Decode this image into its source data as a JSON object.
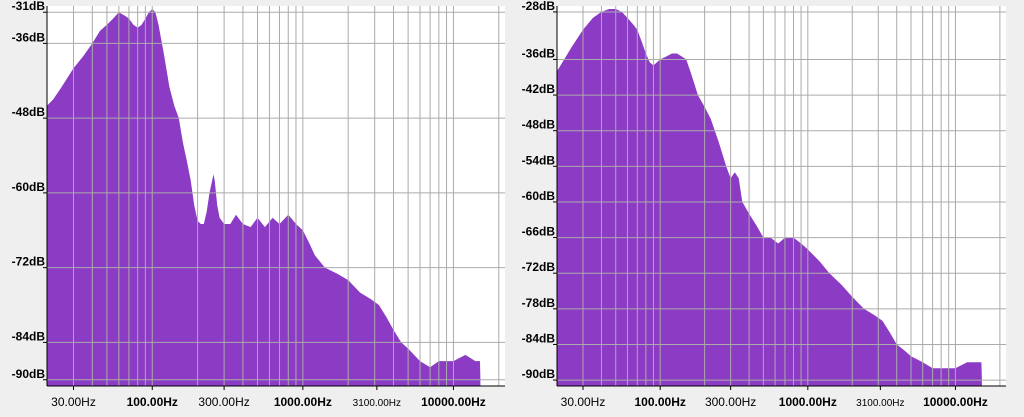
{
  "colors": {
    "fill": "#8b3bc4",
    "grid": "#ababab",
    "plot_bg": "#ffffff",
    "panel_bg": "#efefef",
    "text": "#000000"
  },
  "chart_data": [
    {
      "type": "area",
      "xscale": "log",
      "xlim": [
        20,
        22000
      ],
      "ylim": [
        -91,
        -30
      ],
      "yticks": [
        "-31dB",
        "-36dB",
        "-48dB",
        "-60dB",
        "-72dB",
        "-84dB",
        "-90dB"
      ],
      "ytick_values": [
        -31,
        -36,
        -48,
        -60,
        -72,
        -84,
        -90
      ],
      "xticks": [
        "30.00Hz",
        "100.00Hz",
        "300.00Hz",
        "1000.00Hz",
        "3100.00Hz",
        "10000.00Hz"
      ],
      "xtick_values": [
        30,
        100,
        300,
        1000,
        3100,
        10000
      ],
      "xticks_bold": [
        false,
        true,
        false,
        true,
        false,
        true
      ],
      "grid": true,
      "points": [
        [
          20,
          -46
        ],
        [
          22,
          -45
        ],
        [
          25,
          -43
        ],
        [
          30,
          -40
        ],
        [
          35,
          -38
        ],
        [
          40,
          -36
        ],
        [
          45,
          -34
        ],
        [
          50,
          -33
        ],
        [
          55,
          -32
        ],
        [
          60,
          -31
        ],
        [
          65,
          -31.5
        ],
        [
          70,
          -32
        ],
        [
          75,
          -33
        ],
        [
          80,
          -33.5
        ],
        [
          85,
          -33
        ],
        [
          90,
          -32
        ],
        [
          95,
          -31
        ],
        [
          100,
          -30.5
        ],
        [
          105,
          -31
        ],
        [
          110,
          -33
        ],
        [
          120,
          -38
        ],
        [
          130,
          -43
        ],
        [
          140,
          -46
        ],
        [
          150,
          -48
        ],
        [
          160,
          -52
        ],
        [
          170,
          -55
        ],
        [
          180,
          -58
        ],
        [
          190,
          -62
        ],
        [
          200,
          -64.5
        ],
        [
          210,
          -65
        ],
        [
          220,
          -65
        ],
        [
          230,
          -63
        ],
        [
          240,
          -60
        ],
        [
          250,
          -58
        ],
        [
          255,
          -57
        ],
        [
          260,
          -58
        ],
        [
          270,
          -62
        ],
        [
          280,
          -64
        ],
        [
          300,
          -65
        ],
        [
          330,
          -65
        ],
        [
          360,
          -63.5
        ],
        [
          400,
          -65
        ],
        [
          450,
          -65.5
        ],
        [
          500,
          -64
        ],
        [
          560,
          -65.5
        ],
        [
          630,
          -64
        ],
        [
          700,
          -65
        ],
        [
          800,
          -63.5
        ],
        [
          900,
          -65
        ],
        [
          1000,
          -66
        ],
        [
          1100,
          -68
        ],
        [
          1200,
          -70
        ],
        [
          1400,
          -72
        ],
        [
          1700,
          -73
        ],
        [
          2000,
          -74
        ],
        [
          2400,
          -76
        ],
        [
          2800,
          -77
        ],
        [
          3200,
          -78
        ],
        [
          3600,
          -80
        ],
        [
          4000,
          -82
        ],
        [
          4500,
          -84
        ],
        [
          5000,
          -85
        ],
        [
          6000,
          -87
        ],
        [
          7000,
          -88
        ],
        [
          8000,
          -87
        ],
        [
          10000,
          -87
        ],
        [
          12000,
          -86
        ],
        [
          14000,
          -87
        ],
        [
          15000,
          -87
        ],
        [
          15100,
          -90
        ]
      ]
    },
    {
      "type": "area",
      "xscale": "log",
      "xlim": [
        20,
        22000
      ],
      "ylim": [
        -91,
        -27
      ],
      "yticks": [
        "-28dB",
        "-36dB",
        "-42dB",
        "-48dB",
        "-54dB",
        "-60dB",
        "-66dB",
        "-72dB",
        "-78dB",
        "-84dB",
        "-90dB"
      ],
      "ytick_values": [
        -28,
        -36,
        -42,
        -48,
        -54,
        -60,
        -66,
        -72,
        -78,
        -84,
        -90
      ],
      "xticks": [
        "30.00Hz",
        "100.00Hz",
        "300.00Hz",
        "1000.00Hz",
        "3100.00Hz",
        "10000.00Hz"
      ],
      "xtick_values": [
        30,
        100,
        300,
        1000,
        3100,
        10000
      ],
      "xticks_bold": [
        false,
        true,
        false,
        true,
        false,
        true
      ],
      "grid": true,
      "points": [
        [
          20,
          -38
        ],
        [
          25,
          -34
        ],
        [
          30,
          -31
        ],
        [
          35,
          -29
        ],
        [
          40,
          -28
        ],
        [
          45,
          -27.5
        ],
        [
          50,
          -27.5
        ],
        [
          55,
          -28
        ],
        [
          60,
          -29
        ],
        [
          65,
          -30
        ],
        [
          70,
          -31
        ],
        [
          75,
          -33
        ],
        [
          80,
          -35
        ],
        [
          85,
          -36.5
        ],
        [
          90,
          -37
        ],
        [
          95,
          -36.5
        ],
        [
          100,
          -36
        ],
        [
          110,
          -35.5
        ],
        [
          120,
          -35
        ],
        [
          130,
          -35
        ],
        [
          140,
          -35.5
        ],
        [
          150,
          -36
        ],
        [
          160,
          -38
        ],
        [
          170,
          -40
        ],
        [
          180,
          -42
        ],
        [
          200,
          -44
        ],
        [
          220,
          -46
        ],
        [
          250,
          -50
        ],
        [
          280,
          -54
        ],
        [
          300,
          -56
        ],
        [
          320,
          -55
        ],
        [
          340,
          -56
        ],
        [
          360,
          -60
        ],
        [
          400,
          -62
        ],
        [
          450,
          -64
        ],
        [
          500,
          -66
        ],
        [
          560,
          -66
        ],
        [
          630,
          -67
        ],
        [
          700,
          -66
        ],
        [
          800,
          -66
        ],
        [
          900,
          -67
        ],
        [
          1000,
          -68
        ],
        [
          1200,
          -70
        ],
        [
          1400,
          -72
        ],
        [
          1700,
          -74
        ],
        [
          2000,
          -76
        ],
        [
          2400,
          -78
        ],
        [
          2800,
          -79
        ],
        [
          3200,
          -80
        ],
        [
          3600,
          -82
        ],
        [
          4000,
          -84
        ],
        [
          4500,
          -85
        ],
        [
          5000,
          -86
        ],
        [
          6000,
          -87
        ],
        [
          7000,
          -88
        ],
        [
          8000,
          -88
        ],
        [
          10000,
          -88
        ],
        [
          12000,
          -87
        ],
        [
          14000,
          -87
        ],
        [
          15000,
          -87
        ],
        [
          15100,
          -90
        ]
      ]
    }
  ]
}
